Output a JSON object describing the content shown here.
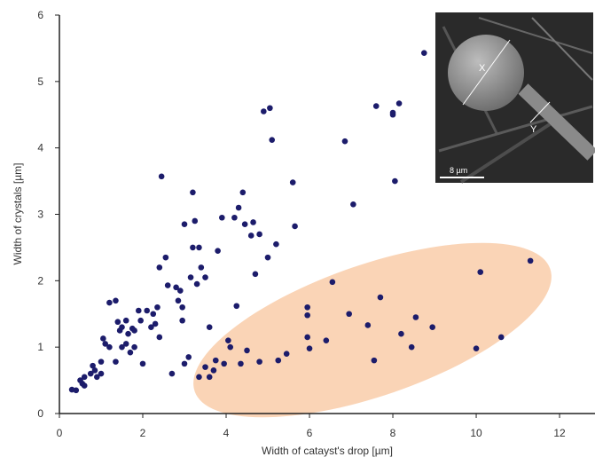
{
  "chart_data": {
    "type": "scatter",
    "x_label": "Width of catayst's drop [µm]",
    "y_label": "Width of crystals [µm]",
    "xlim": [
      0,
      12.85
    ],
    "ylim": [
      0,
      6
    ],
    "xticks": [
      0,
      2,
      4,
      6,
      8,
      10,
      12
    ],
    "yticks": [
      0,
      1,
      2,
      3,
      4,
      5,
      6
    ],
    "color": "#1c1c6b",
    "annotations": [
      "X",
      "Y",
      "8 µm"
    ],
    "x": [
      0.3,
      0.4,
      0.5,
      0.55,
      0.6,
      0.6,
      0.75,
      0.8,
      0.85,
      0.9,
      1.0,
      1.0,
      1.05,
      1.1,
      1.2,
      1.2,
      1.35,
      1.35,
      1.4,
      1.45,
      1.5,
      1.5,
      1.6,
      1.6,
      1.65,
      1.7,
      1.75,
      1.8,
      1.8,
      1.9,
      1.95,
      2.0,
      2.1,
      2.2,
      2.25,
      2.3,
      2.35,
      2.4,
      2.4,
      2.45,
      2.55,
      2.6,
      2.7,
      2.8,
      2.85,
      2.9,
      2.95,
      2.95,
      3.0,
      3.0,
      3.1,
      3.15,
      3.2,
      3.2,
      3.25,
      3.3,
      3.35,
      3.35,
      3.4,
      3.5,
      3.5,
      3.6,
      3.6,
      3.7,
      3.75,
      3.8,
      3.9,
      3.95,
      4.05,
      4.1,
      4.2,
      4.25,
      4.3,
      4.35,
      4.4,
      4.45,
      4.5,
      4.6,
      4.65,
      4.7,
      4.8,
      4.8,
      4.9,
      5.0,
      5.05,
      5.1,
      5.2,
      5.25,
      5.45,
      5.6,
      5.65,
      5.95,
      5.95,
      5.95,
      6.0,
      6.4,
      6.55,
      6.85,
      6.95,
      7.05,
      7.4,
      7.55,
      7.6,
      7.7,
      8.0,
      8.0,
      8.05,
      8.15,
      8.2,
      8.45,
      8.55,
      8.75,
      8.95,
      10.0,
      10.1,
      10.6,
      11.3
    ],
    "values": [
      0.36,
      0.35,
      0.5,
      0.45,
      0.55,
      0.42,
      0.6,
      0.72,
      0.65,
      0.55,
      0.6,
      0.78,
      1.13,
      1.05,
      1.0,
      1.67,
      1.7,
      0.78,
      1.38,
      1.25,
      1.3,
      1.0,
      1.05,
      1.4,
      1.2,
      0.92,
      1.28,
      1.25,
      1.0,
      1.55,
      1.4,
      0.75,
      1.55,
      1.3,
      1.5,
      1.35,
      1.6,
      1.15,
      2.2,
      3.57,
      2.35,
      1.93,
      0.6,
      1.9,
      1.7,
      1.85,
      1.6,
      1.4,
      2.85,
      0.75,
      0.85,
      2.05,
      2.5,
      3.33,
      2.9,
      1.95,
      2.5,
      0.55,
      2.2,
      0.7,
      2.05,
      0.55,
      1.3,
      0.65,
      0.8,
      2.45,
      2.95,
      0.75,
      1.1,
      1.0,
      2.95,
      1.62,
      3.1,
      0.75,
      3.33,
      2.85,
      0.95,
      2.68,
      2.88,
      2.1,
      2.7,
      0.78,
      4.55,
      2.35,
      4.6,
      4.12,
      2.55,
      0.8,
      0.9,
      3.48,
      2.82,
      1.6,
      1.48,
      1.15,
      0.98,
      1.1,
      1.98,
      4.1,
      1.5,
      3.15,
      1.33,
      0.8,
      4.63,
      1.75,
      4.5,
      4.53,
      3.5,
      4.67,
      1.2,
      1.0,
      1.45,
      5.43,
      1.3,
      0.98,
      2.13,
      1.15,
      2.3
    ]
  }
}
